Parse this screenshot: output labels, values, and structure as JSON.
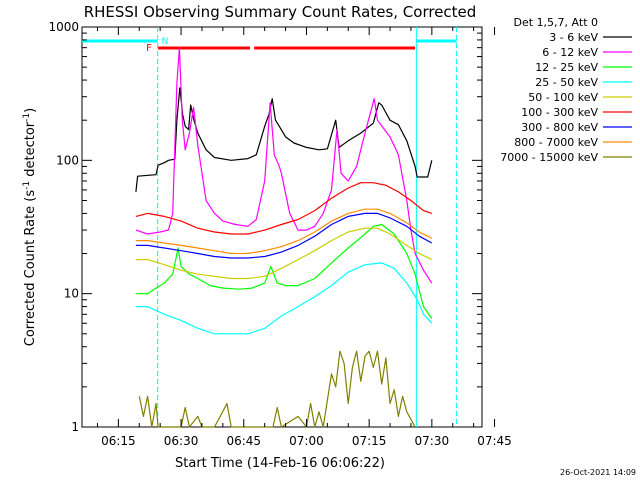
{
  "chart_data": {
    "type": "line",
    "title": "RHESSI Observing Summary Count Rates, Corrected",
    "xlabel": "Start Time (14-Feb-16 06:06:22)",
    "ylabel_main": "Corrected Count Rate (s",
    "ylabel_sup1": "-1",
    "ylabel_mid": " detector",
    "ylabel_sup2": "-1",
    "ylabel_end": ")",
    "y_scale": "log",
    "ylim": [
      1,
      1000
    ],
    "y_ticks": [
      {
        "value": 1,
        "label": "1"
      },
      {
        "value": 10,
        "label": "10"
      },
      {
        "value": 100,
        "label": "100"
      },
      {
        "value": 1000,
        "label": "1000"
      }
    ],
    "xlim_minutes": [
      6.3,
      102
    ],
    "x_ticks": [
      {
        "minute": 15,
        "label": "06:15"
      },
      {
        "minute": 30,
        "label": "06:30"
      },
      {
        "minute": 45,
        "label": "06:45"
      },
      {
        "minute": 60,
        "label": "07:00"
      },
      {
        "minute": 75,
        "label": "07:15"
      },
      {
        "minute": 90,
        "label": "07:30"
      },
      {
        "minute": 105,
        "label": "07:45"
      }
    ],
    "legend_header": "Det 1,5,7, Att 0",
    "legend_position": "right",
    "timestamp": "26-Oct-2021 14:09",
    "flags": {
      "night_label": "N",
      "flare_label": "F",
      "night_color": "#00ffff",
      "flare_color": "#ff0000",
      "night_spans": [
        [
          6.3,
          24.4
        ],
        [
          86.3,
          95.9
        ]
      ],
      "flare_spans": [
        [
          24.5,
          46.5
        ],
        [
          47.5,
          86.0
        ]
      ],
      "dashed_times": [
        24.4,
        95.9
      ],
      "solid_times": [
        86.3
      ]
    },
    "series": [
      {
        "name": "3 - 6 keV",
        "color": "#000000",
        "points": [
          [
            19.2,
            58
          ],
          [
            19.6,
            76
          ],
          [
            24,
            78
          ],
          [
            24.5,
            92
          ],
          [
            26,
            96
          ],
          [
            27,
            100
          ],
          [
            28.5,
            102
          ],
          [
            29,
            200
          ],
          [
            29.7,
            350
          ],
          [
            30.4,
            220
          ],
          [
            31,
            180
          ],
          [
            31.8,
            170
          ],
          [
            32.3,
            260
          ],
          [
            33,
            205
          ],
          [
            34,
            160
          ],
          [
            36,
            120
          ],
          [
            38,
            105
          ],
          [
            42,
            100
          ],
          [
            46,
            103
          ],
          [
            48,
            110
          ],
          [
            50,
            180
          ],
          [
            51,
            220
          ],
          [
            51.8,
            290
          ],
          [
            52.6,
            200
          ],
          [
            53.5,
            180
          ],
          [
            55,
            150
          ],
          [
            57,
            135
          ],
          [
            60,
            125
          ],
          [
            63,
            120
          ],
          [
            65,
            122
          ],
          [
            67,
            200
          ],
          [
            67.8,
            125
          ],
          [
            70,
            140
          ],
          [
            73,
            160
          ],
          [
            76,
            190
          ],
          [
            77.3,
            270
          ],
          [
            78,
            260
          ],
          [
            80,
            200
          ],
          [
            82,
            185
          ],
          [
            84,
            140
          ],
          [
            86,
            90
          ],
          [
            86.5,
            75
          ],
          [
            89,
            75
          ],
          [
            90,
            100
          ]
        ]
      },
      {
        "name": "6 - 12 keV",
        "color": "#ff00ff",
        "points": [
          [
            19.2,
            30
          ],
          [
            22,
            28
          ],
          [
            25,
            29
          ],
          [
            27,
            30
          ],
          [
            28,
            40
          ],
          [
            29,
            380
          ],
          [
            29.6,
            700
          ],
          [
            30.3,
            200
          ],
          [
            31,
            120
          ],
          [
            32,
            160
          ],
          [
            33,
            250
          ],
          [
            34,
            130
          ],
          [
            35,
            80
          ],
          [
            36,
            50
          ],
          [
            38,
            40
          ],
          [
            40,
            35
          ],
          [
            43,
            33
          ],
          [
            46,
            32
          ],
          [
            48,
            36
          ],
          [
            50,
            70
          ],
          [
            51.3,
            270
          ],
          [
            52.3,
            110
          ],
          [
            53.5,
            90
          ],
          [
            54,
            80
          ],
          [
            56,
            40
          ],
          [
            58,
            30
          ],
          [
            60,
            30
          ],
          [
            62,
            32
          ],
          [
            64,
            40
          ],
          [
            66,
            60
          ],
          [
            67.3,
            170
          ],
          [
            68.3,
            80
          ],
          [
            70,
            70
          ],
          [
            72,
            90
          ],
          [
            74,
            160
          ],
          [
            76.2,
            290
          ],
          [
            77,
            200
          ],
          [
            80,
            150
          ],
          [
            82,
            110
          ],
          [
            84,
            50
          ],
          [
            85,
            30
          ],
          [
            86,
            20
          ],
          [
            88,
            15
          ],
          [
            90,
            12
          ]
        ]
      },
      {
        "name": "12 - 25 keV",
        "color": "#00ff00",
        "points": [
          [
            19.2,
            10
          ],
          [
            22,
            10
          ],
          [
            24,
            11
          ],
          [
            26,
            12
          ],
          [
            28,
            14
          ],
          [
            29.3,
            22
          ],
          [
            30,
            16
          ],
          [
            32,
            14
          ],
          [
            34,
            13
          ],
          [
            37,
            11.5
          ],
          [
            40,
            11
          ],
          [
            44,
            10.8
          ],
          [
            47,
            11
          ],
          [
            50,
            12
          ],
          [
            51.5,
            16
          ],
          [
            53,
            12
          ],
          [
            55,
            11.5
          ],
          [
            58,
            11.5
          ],
          [
            62,
            13
          ],
          [
            66,
            17
          ],
          [
            70,
            22
          ],
          [
            74,
            28
          ],
          [
            76,
            32
          ],
          [
            78,
            33
          ],
          [
            81,
            28
          ],
          [
            84,
            20
          ],
          [
            86,
            14
          ],
          [
            88,
            8
          ],
          [
            90,
            6.5
          ]
        ]
      },
      {
        "name": "25 - 50 keV",
        "color": "#00ffff",
        "points": [
          [
            19.2,
            8
          ],
          [
            22,
            8
          ],
          [
            26,
            7
          ],
          [
            30,
            6.3
          ],
          [
            34,
            5.5
          ],
          [
            38,
            5
          ],
          [
            42,
            5
          ],
          [
            46,
            5
          ],
          [
            50,
            5.5
          ],
          [
            54,
            6.8
          ],
          [
            58,
            8
          ],
          [
            62,
            9.5
          ],
          [
            66,
            11.5
          ],
          [
            70,
            14.5
          ],
          [
            74,
            16.5
          ],
          [
            78,
            17
          ],
          [
            81,
            15.5
          ],
          [
            84,
            12
          ],
          [
            86.5,
            9
          ],
          [
            88,
            7
          ],
          [
            90,
            6
          ]
        ]
      },
      {
        "name": "50 - 100 keV",
        "color": "#cccc00",
        "points": [
          [
            19.2,
            18
          ],
          [
            22,
            18
          ],
          [
            26,
            16.5
          ],
          [
            30,
            15
          ],
          [
            34,
            14
          ],
          [
            38,
            13.5
          ],
          [
            42,
            13
          ],
          [
            46,
            13
          ],
          [
            50,
            13.5
          ],
          [
            54,
            15.5
          ],
          [
            58,
            18
          ],
          [
            62,
            21
          ],
          [
            66,
            25
          ],
          [
            70,
            29
          ],
          [
            74,
            31
          ],
          [
            77,
            31
          ],
          [
            80,
            28
          ],
          [
            84,
            23
          ],
          [
            87,
            20
          ],
          [
            90,
            18
          ]
        ]
      },
      {
        "name": "100 - 300 keV",
        "color": "#ff0000",
        "points": [
          [
            19.2,
            38
          ],
          [
            22,
            40
          ],
          [
            26,
            38
          ],
          [
            30,
            35
          ],
          [
            34,
            31
          ],
          [
            38,
            29
          ],
          [
            42,
            28
          ],
          [
            46,
            28
          ],
          [
            50,
            30
          ],
          [
            54,
            33
          ],
          [
            58,
            36
          ],
          [
            62,
            42
          ],
          [
            66,
            52
          ],
          [
            70,
            62
          ],
          [
            73,
            68
          ],
          [
            76,
            68
          ],
          [
            79,
            65
          ],
          [
            82,
            58
          ],
          [
            85,
            50
          ],
          [
            88,
            42
          ],
          [
            90,
            40
          ]
        ]
      },
      {
        "name": "300 - 800 keV",
        "color": "#0000ff",
        "points": [
          [
            19.2,
            23
          ],
          [
            22,
            23
          ],
          [
            26,
            22
          ],
          [
            30,
            21
          ],
          [
            34,
            20
          ],
          [
            38,
            19
          ],
          [
            42,
            18.5
          ],
          [
            46,
            18.5
          ],
          [
            50,
            19
          ],
          [
            54,
            20.5
          ],
          [
            58,
            23
          ],
          [
            62,
            27
          ],
          [
            66,
            33
          ],
          [
            70,
            38
          ],
          [
            74,
            40
          ],
          [
            77,
            40
          ],
          [
            80,
            37
          ],
          [
            84,
            32
          ],
          [
            87,
            27
          ],
          [
            90,
            24
          ]
        ]
      },
      {
        "name": "800 - 7000 keV",
        "color": "#ff8c00",
        "points": [
          [
            19.2,
            25
          ],
          [
            22,
            25
          ],
          [
            26,
            24
          ],
          [
            30,
            23
          ],
          [
            34,
            22
          ],
          [
            38,
            21
          ],
          [
            42,
            20
          ],
          [
            46,
            20
          ],
          [
            50,
            21
          ],
          [
            54,
            22.5
          ],
          [
            58,
            25
          ],
          [
            62,
            29
          ],
          [
            66,
            35
          ],
          [
            70,
            40
          ],
          [
            74,
            43
          ],
          [
            77,
            43
          ],
          [
            80,
            40
          ],
          [
            84,
            34
          ],
          [
            87,
            29
          ],
          [
            90,
            26
          ]
        ]
      },
      {
        "name": "7000 - 15000 keV",
        "color": "#808000",
        "points": [
          [
            20,
            1.7
          ],
          [
            21,
            1.2
          ],
          [
            22,
            1.7
          ],
          [
            23,
            1.0
          ],
          [
            24,
            1.5
          ],
          [
            24.5,
            1.0
          ],
          [
            30,
            1.0
          ],
          [
            31,
            1.4
          ],
          [
            32,
            1.0
          ],
          [
            34,
            1.2
          ],
          [
            35,
            1.0
          ],
          [
            38,
            1.0
          ],
          [
            41,
            1.5
          ],
          [
            42,
            1.0
          ],
          [
            44,
            1.0
          ],
          [
            47,
            1.0
          ],
          [
            50,
            1.0
          ],
          [
            52,
            1.0
          ],
          [
            53,
            1.4
          ],
          [
            54,
            1.0
          ],
          [
            58,
            1.2
          ],
          [
            60,
            1.0
          ],
          [
            61,
            1.5
          ],
          [
            62,
            1.0
          ],
          [
            63,
            1.3
          ],
          [
            64,
            1.0
          ],
          [
            66,
            2.5
          ],
          [
            67,
            2.0
          ],
          [
            68,
            3.7
          ],
          [
            69,
            3.0
          ],
          [
            70,
            1.5
          ],
          [
            71,
            2.8
          ],
          [
            72,
            3.7
          ],
          [
            73,
            2.2
          ],
          [
            74,
            3.4
          ],
          [
            75,
            3.7
          ],
          [
            76,
            2.8
          ],
          [
            77,
            3.7
          ],
          [
            78,
            2.1
          ],
          [
            79,
            3.3
          ],
          [
            80,
            1.5
          ],
          [
            81,
            1.9
          ],
          [
            82,
            1.2
          ],
          [
            83,
            1.7
          ],
          [
            84,
            1.3
          ],
          [
            86,
            1.0
          ]
        ]
      }
    ]
  }
}
